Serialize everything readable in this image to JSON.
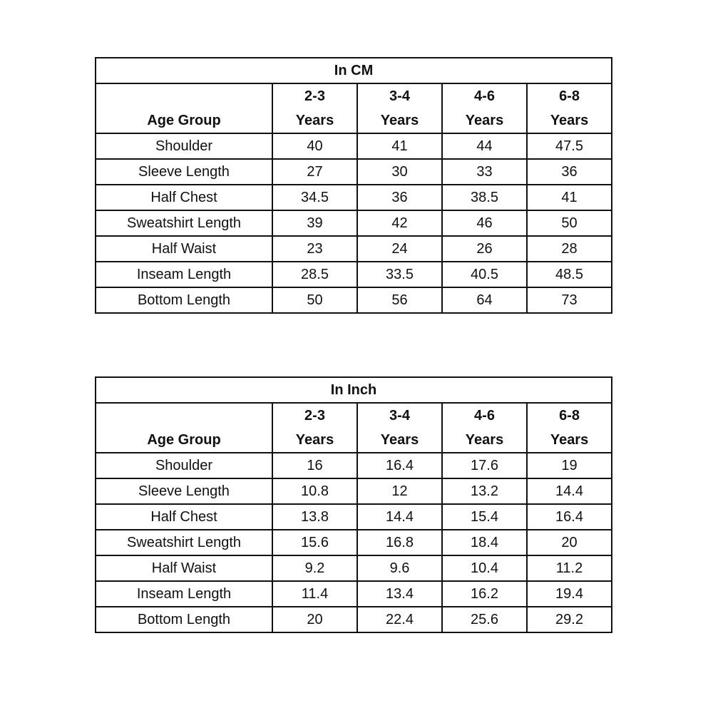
{
  "tables": [
    {
      "title": "In CM",
      "row_header": "Age Group",
      "columns": [
        [
          "2-3",
          "Years"
        ],
        [
          "3-4",
          "Years"
        ],
        [
          "4-6",
          "Years"
        ],
        [
          "6-8",
          "Years"
        ]
      ],
      "rows": [
        {
          "label": "Shoulder",
          "values": [
            40,
            41,
            44,
            47.5
          ]
        },
        {
          "label": "Sleeve Length",
          "values": [
            27,
            30,
            33,
            36
          ]
        },
        {
          "label": "Half Chest",
          "values": [
            34.5,
            36,
            38.5,
            41
          ]
        },
        {
          "label": "Sweatshirt Length",
          "values": [
            39,
            42,
            46,
            50
          ]
        },
        {
          "label": "Half Waist",
          "values": [
            23,
            24,
            26,
            28
          ]
        },
        {
          "label": "Inseam Length",
          "values": [
            28.5,
            33.5,
            40.5,
            48.5
          ]
        },
        {
          "label": "Bottom Length",
          "values": [
            50,
            56,
            64,
            73
          ]
        }
      ]
    },
    {
      "title": "In Inch",
      "row_header": "Age Group",
      "columns": [
        [
          "2-3",
          "Years"
        ],
        [
          "3-4",
          "Years"
        ],
        [
          "4-6",
          "Years"
        ],
        [
          "6-8",
          "Years"
        ]
      ],
      "rows": [
        {
          "label": "Shoulder",
          "values": [
            16,
            16.4,
            17.6,
            19
          ]
        },
        {
          "label": "Sleeve Length",
          "values": [
            10.8,
            12,
            13.2,
            14.4
          ]
        },
        {
          "label": "Half Chest",
          "values": [
            13.8,
            14.4,
            15.4,
            16.4
          ]
        },
        {
          "label": "Sweatshirt Length",
          "values": [
            15.6,
            16.8,
            18.4,
            20
          ]
        },
        {
          "label": "Half Waist",
          "values": [
            9.2,
            9.6,
            10.4,
            11.2
          ]
        },
        {
          "label": "Inseam Length",
          "values": [
            11.4,
            13.4,
            16.2,
            19.4
          ]
        },
        {
          "label": "Bottom Length",
          "values": [
            20,
            22.4,
            25.6,
            29.2
          ]
        }
      ]
    }
  ]
}
